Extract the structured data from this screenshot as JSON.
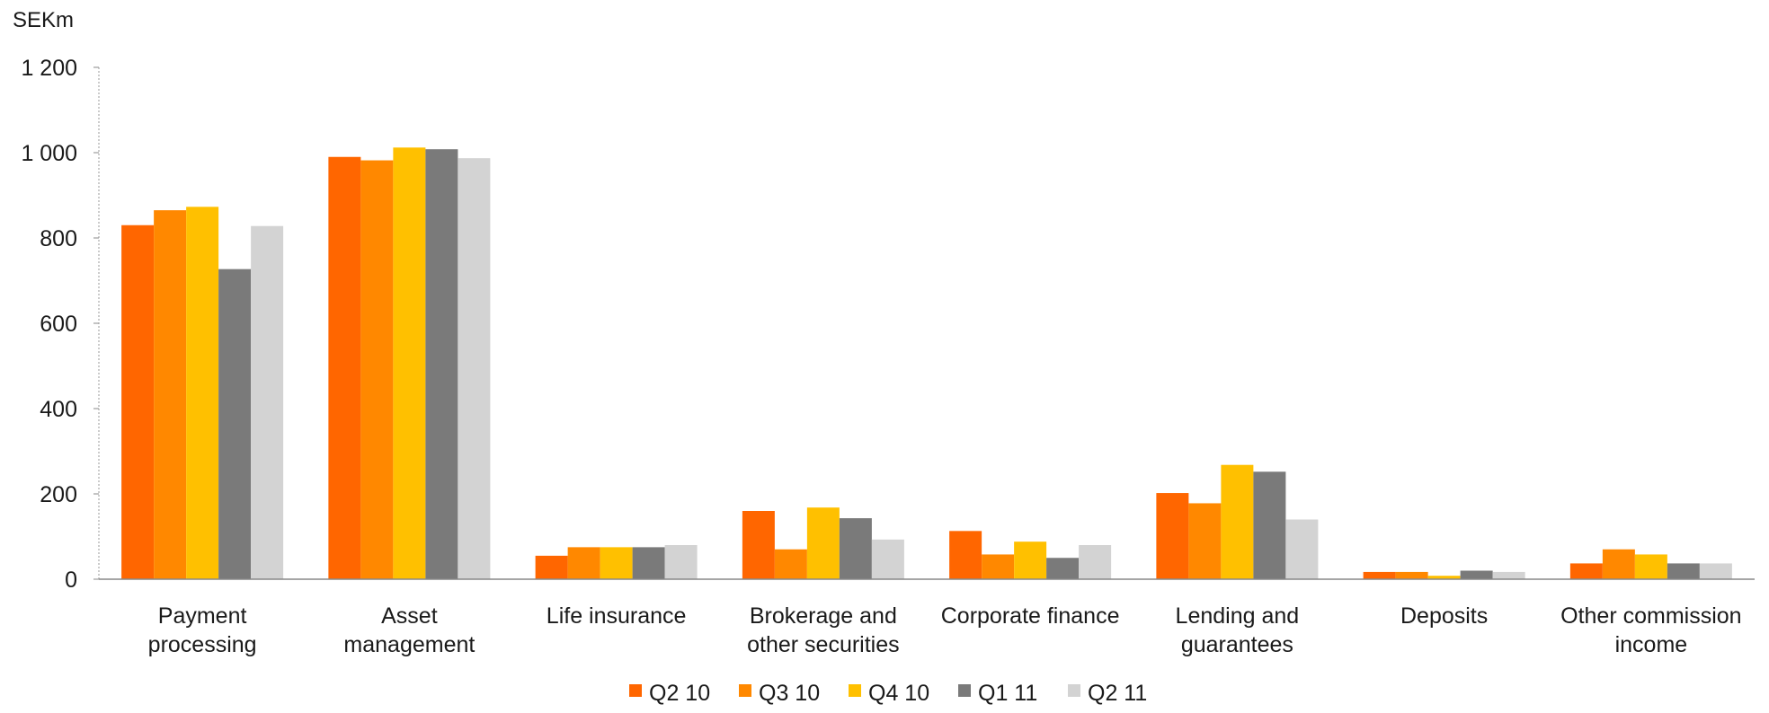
{
  "chart_data": {
    "type": "bar",
    "unit_label": "SEKm",
    "categories": [
      [
        "Payment",
        "processing"
      ],
      [
        "Asset",
        "management"
      ],
      [
        "Life insurance"
      ],
      [
        "Brokerage and",
        "other securities"
      ],
      [
        "Corporate finance"
      ],
      [
        "Lending and",
        "guarantees"
      ],
      [
        "Deposits"
      ],
      [
        "Other commission",
        "income"
      ]
    ],
    "series": [
      {
        "name": "Q2 10",
        "color": "#ff6600",
        "values": [
          830,
          990,
          55,
          160,
          113,
          202,
          17,
          37
        ]
      },
      {
        "name": "Q3 10",
        "color": "#ff8800",
        "values": [
          865,
          982,
          75,
          70,
          58,
          178,
          17,
          70
        ]
      },
      {
        "name": "Q4 10",
        "color": "#ffc000",
        "values": [
          873,
          1012,
          75,
          168,
          88,
          268,
          8,
          58
        ]
      },
      {
        "name": "Q1 11",
        "color": "#7a7a7a",
        "values": [
          727,
          1008,
          75,
          143,
          50,
          252,
          20,
          37
        ]
      },
      {
        "name": "Q2 11",
        "color": "#d3d3d3",
        "values": [
          828,
          987,
          80,
          93,
          80,
          140,
          17,
          37
        ]
      }
    ],
    "ylim": [
      0,
      1200
    ],
    "yticks": [
      0,
      200,
      400,
      600,
      800,
      1000,
      1200
    ],
    "ytick_labels": [
      "0",
      "200",
      "400",
      "600",
      "800",
      "1 000",
      "1 200"
    ],
    "grid": false,
    "legend_position": "bottom-center"
  }
}
